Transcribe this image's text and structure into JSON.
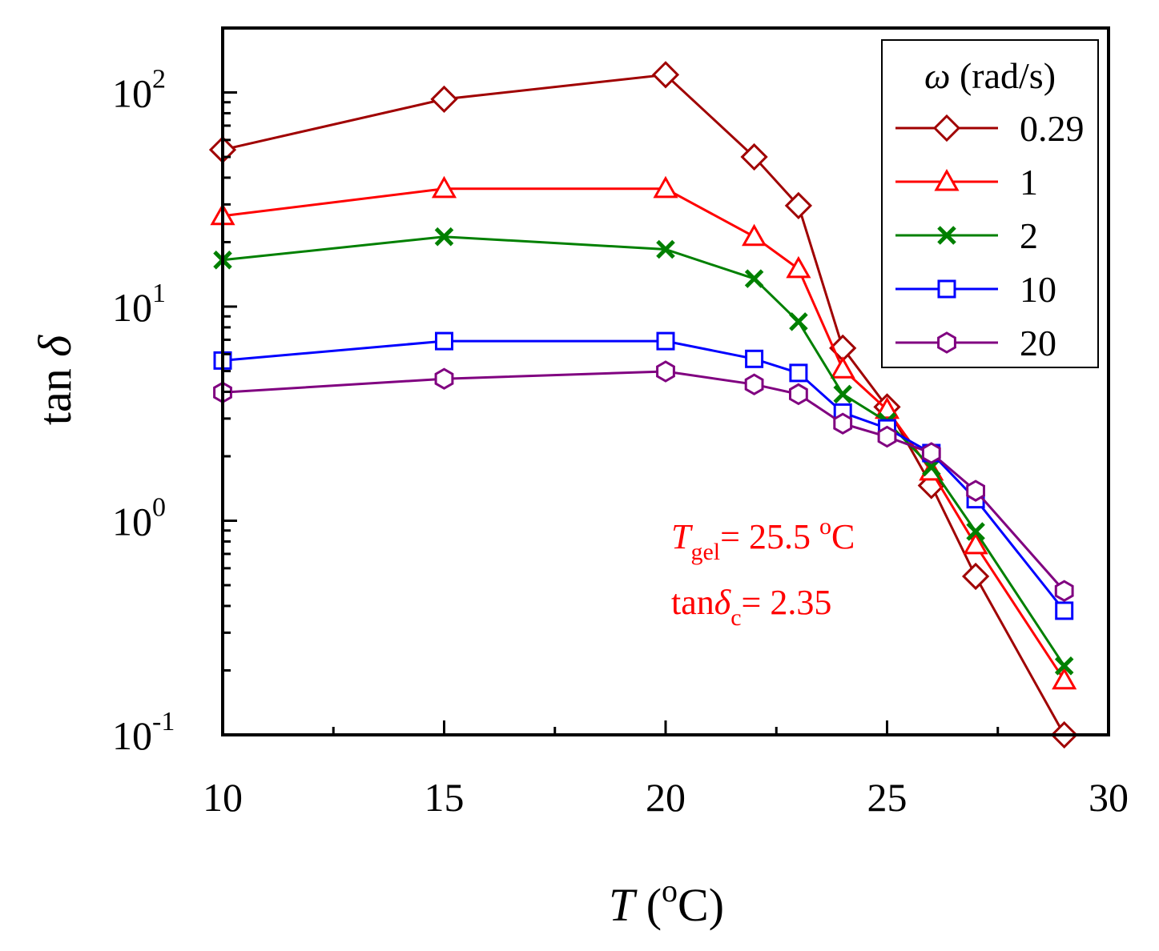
{
  "chart_data": {
    "type": "line",
    "title": "",
    "xlabel": {
      "italic": "T",
      "rest_open": " (",
      "sup": "o",
      "rest_close": "C)"
    },
    "ylabel": {
      "text": "tan ",
      "symbol": "δ"
    },
    "xlim": [
      10,
      30
    ],
    "ylim": [
      0.1,
      200
    ],
    "yscale": "log",
    "x_ticks": [
      10,
      15,
      20,
      25,
      30
    ],
    "x_tick_labels": [
      "10",
      "15",
      "20",
      "25",
      "30"
    ],
    "y_ticks": [
      0.1,
      1,
      10,
      100
    ],
    "y_tick_labels": [
      {
        "base": "10",
        "exp": "-1"
      },
      {
        "base": "10",
        "exp": "0"
      },
      {
        "base": "10",
        "exp": "1"
      },
      {
        "base": "10",
        "exp": "2"
      }
    ],
    "grid": false,
    "legend": {
      "placement": "top-right",
      "title_symbol": "ω",
      "title_unit": " (rad/s)"
    },
    "x": [
      10,
      15,
      20,
      22,
      23,
      24,
      25,
      26,
      27,
      29
    ],
    "series": [
      {
        "name": "0.29",
        "color": "#a00000",
        "marker": "diamond",
        "values": [
          54,
          93,
          121,
          50,
          29.6,
          6.4,
          3.4,
          1.46,
          0.55,
          0.1
        ]
      },
      {
        "name": "1",
        "color": "#ff0000",
        "marker": "triangle",
        "values": [
          26.5,
          35.5,
          35.5,
          21.2,
          15,
          5.1,
          3.3,
          1.7,
          0.77,
          0.18
        ]
      },
      {
        "name": "2",
        "color": "#008000",
        "marker": "x",
        "values": [
          16.5,
          21.2,
          18.5,
          13.5,
          8.5,
          3.9,
          2.9,
          1.78,
          0.89,
          0.21
        ]
      },
      {
        "name": "10",
        "color": "#0000ff",
        "marker": "square",
        "values": [
          5.6,
          6.9,
          6.9,
          5.7,
          4.9,
          3.2,
          2.7,
          2.07,
          1.26,
          0.38
        ]
      },
      {
        "name": "20",
        "color": "#800080",
        "marker": "hexagon",
        "values": [
          3.97,
          4.6,
          4.98,
          4.33,
          3.9,
          2.84,
          2.47,
          2.07,
          1.38,
          0.47
        ]
      }
    ],
    "annotations": {
      "color": "#ff0000",
      "tgel": {
        "italic": "T",
        "sub": "gel",
        "rest": "= 25.5 ",
        "sup": "o",
        "unit": "C"
      },
      "tand": {
        "text": "tan",
        "symbol": "δ",
        "sub": "c",
        "rest": "= 2.35"
      }
    }
  }
}
